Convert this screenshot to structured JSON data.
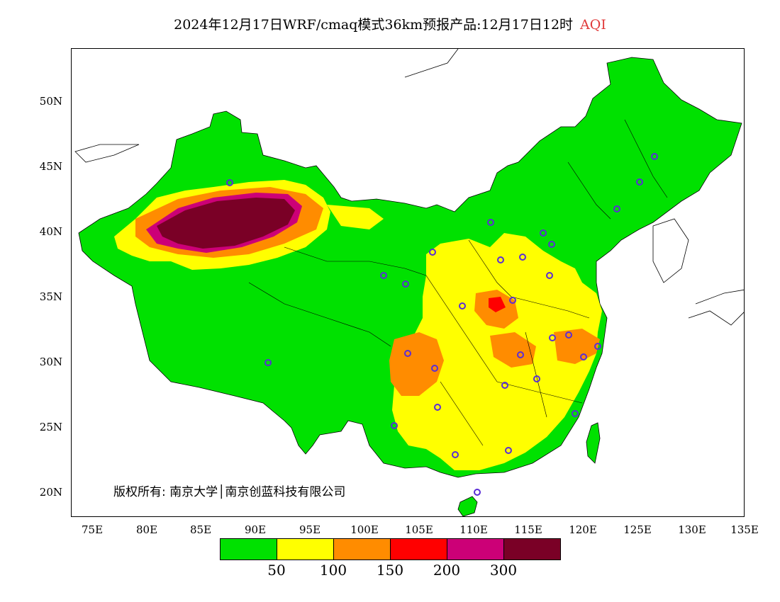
{
  "title": {
    "main": "2024年12月17日WRF/cmaq模式36km预报产品:12月17日12时",
    "variable": "AQI",
    "variable_color": "#e03a3a"
  },
  "axes": {
    "lat_labels": [
      "50N",
      "45N",
      "40N",
      "35N",
      "30N",
      "25N",
      "20N"
    ],
    "lon_labels": [
      "75E",
      "80E",
      "85E",
      "90E",
      "95E",
      "100E",
      "105E",
      "110E",
      "115E",
      "120E",
      "125E",
      "130E",
      "135E"
    ]
  },
  "copyright": "版权所有: 南京大学│南京创蓝科技有限公司",
  "legend": {
    "colors": [
      "#00e100",
      "#ffff00",
      "#ff8c00",
      "#ff0000",
      "#cc0077",
      "#7a0026"
    ],
    "labels": [
      "50",
      "100",
      "150",
      "200",
      "300"
    ]
  },
  "map": {
    "region": "China",
    "field": "AQI",
    "station_marker_color": "#5a2dd6"
  }
}
